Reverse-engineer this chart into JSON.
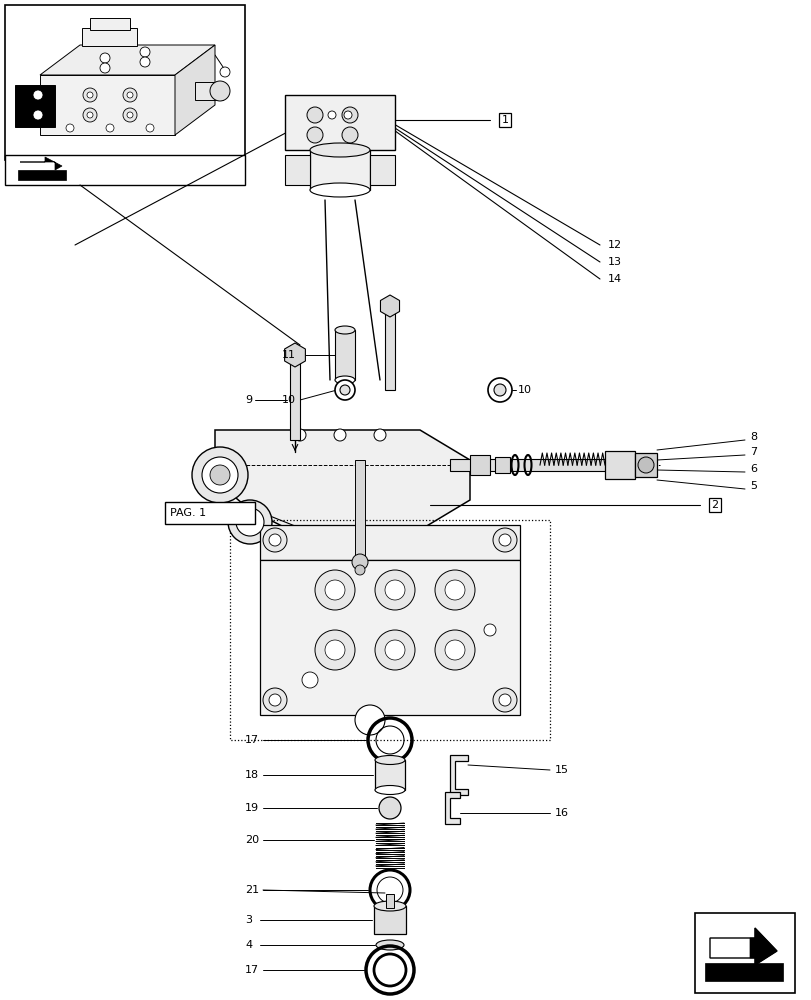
{
  "bg_color": "#ffffff",
  "line_color": "#000000",
  "fig_width": 8.12,
  "fig_height": 10.0,
  "dpi": 100
}
